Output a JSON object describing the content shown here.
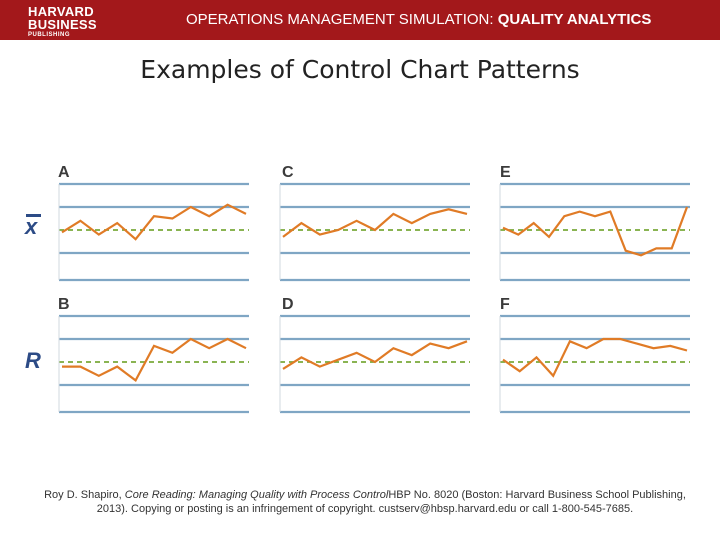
{
  "header": {
    "logo_line1": "HARVARD",
    "logo_line2": "BUSINESS",
    "logo_line3": "PUBLISHING",
    "title_regular": "OPERATIONS MANAGEMENT SIMULATION:",
    "title_bold": "QUALITY ANALYTICS"
  },
  "slide_title": "Examples of Control Chart Patterns",
  "row_labels": {
    "top": "x",
    "bottom": "R"
  },
  "panels": [
    {
      "label": "A",
      "values": [
        -0.1,
        0.4,
        -0.2,
        0.3,
        -0.4,
        0.6,
        0.5,
        1.0,
        0.6,
        1.1,
        0.7
      ]
    },
    {
      "label": "C",
      "values": [
        -0.3,
        0.3,
        -0.2,
        0.0,
        0.4,
        0.0,
        0.7,
        0.3,
        0.7,
        0.9,
        0.7
      ]
    },
    {
      "label": "E",
      "values": [
        0.1,
        -0.2,
        0.3,
        -0.3,
        0.6,
        0.8,
        0.6,
        0.8,
        -0.9,
        -1.1,
        -0.8,
        -0.8,
        1.0
      ]
    },
    {
      "label": "B",
      "values": [
        -0.2,
        -0.2,
        -0.6,
        -0.2,
        -0.8,
        0.7,
        0.4,
        1.0,
        0.6,
        1.0,
        0.6
      ]
    },
    {
      "label": "D",
      "values": [
        -0.3,
        0.2,
        -0.2,
        0.1,
        0.4,
        0.0,
        0.6,
        0.3,
        0.8,
        0.6,
        0.9
      ]
    },
    {
      "label": "F",
      "values": [
        0.1,
        -0.4,
        0.2,
        -0.6,
        0.9,
        0.6,
        1.0,
        1.0,
        0.8,
        0.6,
        0.7,
        0.5
      ]
    }
  ],
  "colors": {
    "header_bg": "#a3181b",
    "series": "#e07b26",
    "limit_line": "#7fa6c4",
    "center_line": "#79a93a",
    "row_label": "#2c4b86"
  },
  "footer": {
    "author": "Roy D. Shapiro,",
    "work_italic": "Core Reading: Managing Quality with Process Control",
    "rest_line1": "HBP No. 8020 (Boston: Harvard Business School Publishing,",
    "line2": "2013). Copying or posting is an infringement of copyright. custserv@hbsp.harvard.edu or call 1-800-545-7685."
  }
}
